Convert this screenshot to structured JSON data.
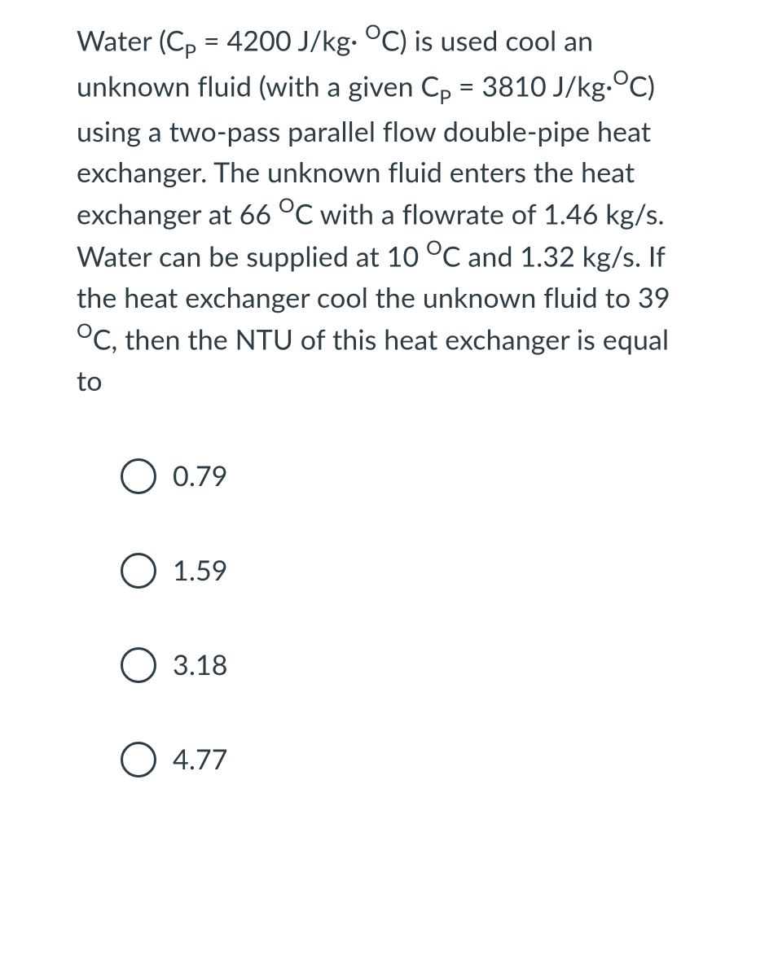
{
  "question": {
    "prefix1": "Water (C",
    "sub1": "P",
    "part1b": " = 4200 J/kg· ",
    "sup1": "O",
    "part1c": "C) is used cool an unknown fluid (with a given C",
    "sub2": "P",
    "part2b": " = 3810 J/kg·",
    "sup2": "O",
    "part2c": "C) using a two-pass parallel flow double-pipe heat exchanger. The unknown fluid enters the heat exchanger at 66 ",
    "sup3": "O",
    "part3b": "C with a flowrate of 1.46 kg/s. Water can be supplied at 10 ",
    "sup4": "O",
    "part4b": "C and 1.32 kg/s. If the heat exchanger cool the unknown fluid to 39 ",
    "sup5": "O",
    "part5b": "C, then the NTU of this heat exchanger is equal to"
  },
  "options": [
    {
      "label": "0.79"
    },
    {
      "label": "1.59"
    },
    {
      "label": "3.18"
    },
    {
      "label": "4.77"
    }
  ],
  "styling": {
    "text_color": "#2d3b45",
    "background_color": "#ffffff",
    "radio_border_color": "#2d3b45",
    "question_fontsize": 34,
    "option_fontsize": 34,
    "radio_diameter": 44,
    "radio_border_width": 3,
    "option_vertical_gap": 72,
    "question_line_height": 1.48
  }
}
